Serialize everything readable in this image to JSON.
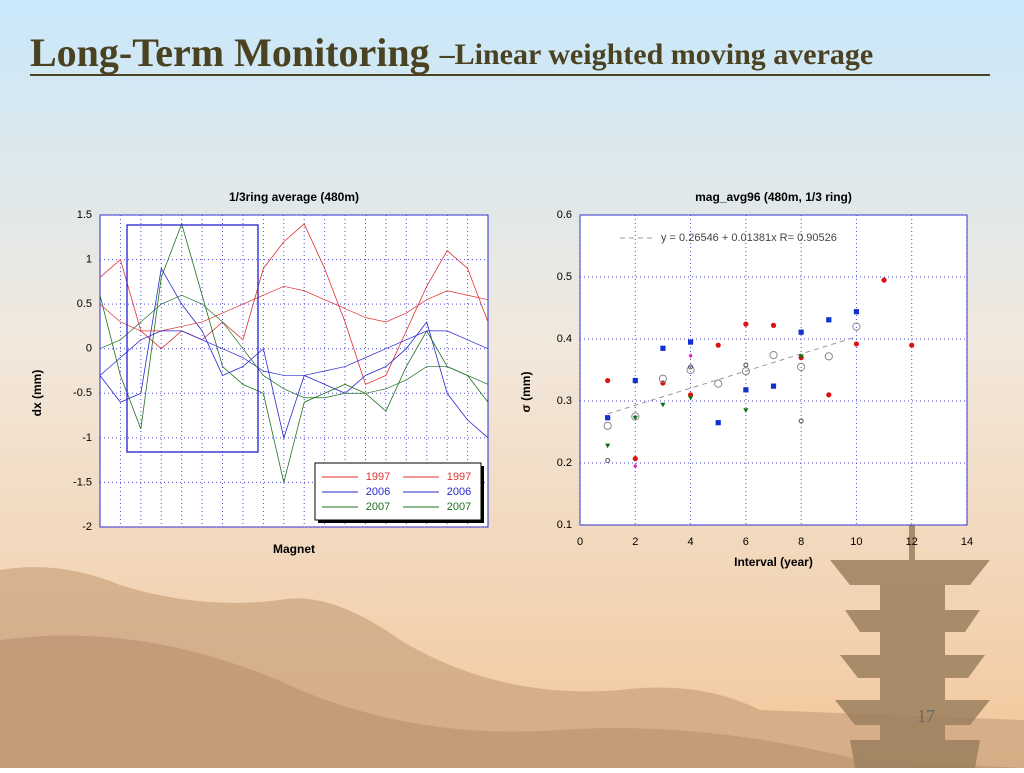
{
  "slide": {
    "title": "Long-Term Monitoring",
    "subtitle": "–Linear weighted moving average",
    "page_number": "17"
  },
  "chart_data": [
    {
      "type": "line",
      "title": "1/3ring average (480m)",
      "xlabel": "Magnet",
      "ylabel": "dx (mm)",
      "categories": [
        null,
        null,
        null,
        null,
        null,
        null,
        null,
        null,
        null,
        null,
        null,
        null,
        null,
        null,
        null,
        null,
        null,
        null,
        null,
        null
      ],
      "ylim": [
        -2,
        1.5
      ],
      "yticks": [
        1.5,
        1,
        0.5,
        0,
        -0.5,
        -1,
        -1.5,
        -2
      ],
      "grid": true,
      "legend": "lower right",
      "series": [
        {
          "name": "1997",
          "color": "#e03030",
          "values": [
            0.8,
            1.0,
            0.2,
            0.0,
            0.2,
            0.1,
            0.3,
            0.1,
            0.9,
            1.2,
            1.4,
            0.9,
            0.3,
            -0.4,
            -0.3,
            0.2,
            0.7,
            1.1,
            0.9,
            0.3
          ]
        },
        {
          "name": "2006",
          "color": "#2828d0",
          "values": [
            -0.3,
            -0.6,
            -0.5,
            0.9,
            0.5,
            0.2,
            -0.3,
            -0.2,
            0.0,
            -1.0,
            -0.3,
            -0.4,
            -0.5,
            -0.3,
            -0.2,
            0.0,
            0.3,
            -0.5,
            -0.8,
            -1.0
          ]
        },
        {
          "name": "2007",
          "color": "#207020",
          "values": [
            0.6,
            -0.3,
            -0.9,
            0.8,
            1.4,
            0.6,
            -0.2,
            -0.4,
            -0.5,
            -1.5,
            -0.6,
            -0.5,
            -0.4,
            -0.5,
            -0.7,
            -0.2,
            0.2,
            -0.2,
            -0.3,
            -0.6
          ]
        },
        {
          "name": "1997",
          "color": "#e03030",
          "values": [
            0.5,
            0.3,
            0.2,
            0.2,
            0.25,
            0.3,
            0.4,
            0.5,
            0.6,
            0.7,
            0.65,
            0.55,
            0.45,
            0.35,
            0.3,
            0.4,
            0.55,
            0.65,
            0.6,
            0.55
          ]
        },
        {
          "name": "2006",
          "color": "#2828d0",
          "values": [
            -0.3,
            -0.1,
            0.1,
            0.2,
            0.2,
            0.1,
            0.0,
            -0.1,
            -0.25,
            -0.3,
            -0.3,
            -0.25,
            -0.2,
            -0.1,
            0.0,
            0.1,
            0.2,
            0.2,
            0.1,
            0.0
          ]
        },
        {
          "name": "2007",
          "color": "#207020",
          "values": [
            0.0,
            0.1,
            0.3,
            0.5,
            0.6,
            0.5,
            0.3,
            0.0,
            -0.3,
            -0.45,
            -0.55,
            -0.55,
            -0.5,
            -0.5,
            -0.45,
            -0.35,
            -0.2,
            -0.2,
            -0.3,
            -0.4
          ]
        }
      ]
    },
    {
      "type": "scatter",
      "title": "mag_avg96 (480m, 1/3 ring)",
      "xlabel": "Interval (year)",
      "ylabel": "σ (mm)",
      "xlim": [
        0,
        14
      ],
      "xticks": [
        0,
        2,
        4,
        6,
        8,
        10,
        12,
        14
      ],
      "ylim": [
        0.1,
        0.6
      ],
      "yticks": [
        0.6,
        0.5,
        0.4,
        0.3,
        0.2,
        0.1
      ],
      "grid": true,
      "fit_label": "y = 0.26546 + 0.01381x   R= 0.90526",
      "fit": {
        "intercept": 0.26546,
        "slope": 0.01381
      },
      "series": [
        {
          "marker": "circle",
          "color": "#e01010",
          "x": [
            1,
            2,
            3,
            4,
            5,
            6,
            7,
            8,
            9,
            10,
            11,
            12
          ],
          "values": [
            0.333,
            0.207,
            0.329,
            0.31,
            0.39,
            0.424,
            0.422,
            0.37,
            0.31,
            0.392,
            0.495,
            0.39
          ]
        },
        {
          "marker": "square",
          "color": "#1030d0",
          "x": [
            1,
            2,
            3,
            4,
            5,
            6,
            7,
            8,
            9,
            10
          ],
          "values": [
            0.273,
            0.333,
            0.385,
            0.395,
            0.265,
            0.318,
            0.324,
            0.411,
            0.431,
            0.444
          ]
        },
        {
          "marker": "triangle",
          "color": "#107010",
          "x": [
            1,
            2,
            3,
            4,
            6,
            8
          ],
          "values": [
            0.228,
            0.273,
            0.294,
            0.305,
            0.285,
            0.372
          ]
        },
        {
          "marker": "diamond",
          "color": "#e020c0",
          "x": [
            2,
            4
          ],
          "values": [
            0.195,
            0.373
          ]
        },
        {
          "marker": "open-circle",
          "color": "#888888",
          "x": [
            1,
            2,
            3,
            4,
            5,
            6,
            7,
            8,
            9,
            10
          ],
          "values": [
            0.26,
            0.275,
            0.336,
            0.35,
            0.328,
            0.348,
            0.374,
            0.355,
            0.372,
            0.42
          ]
        },
        {
          "marker": "small-open-circle",
          "color": "#555555",
          "x": [
            1,
            4,
            6,
            8
          ],
          "values": [
            0.204,
            0.355,
            0.358,
            0.268
          ]
        }
      ]
    }
  ]
}
